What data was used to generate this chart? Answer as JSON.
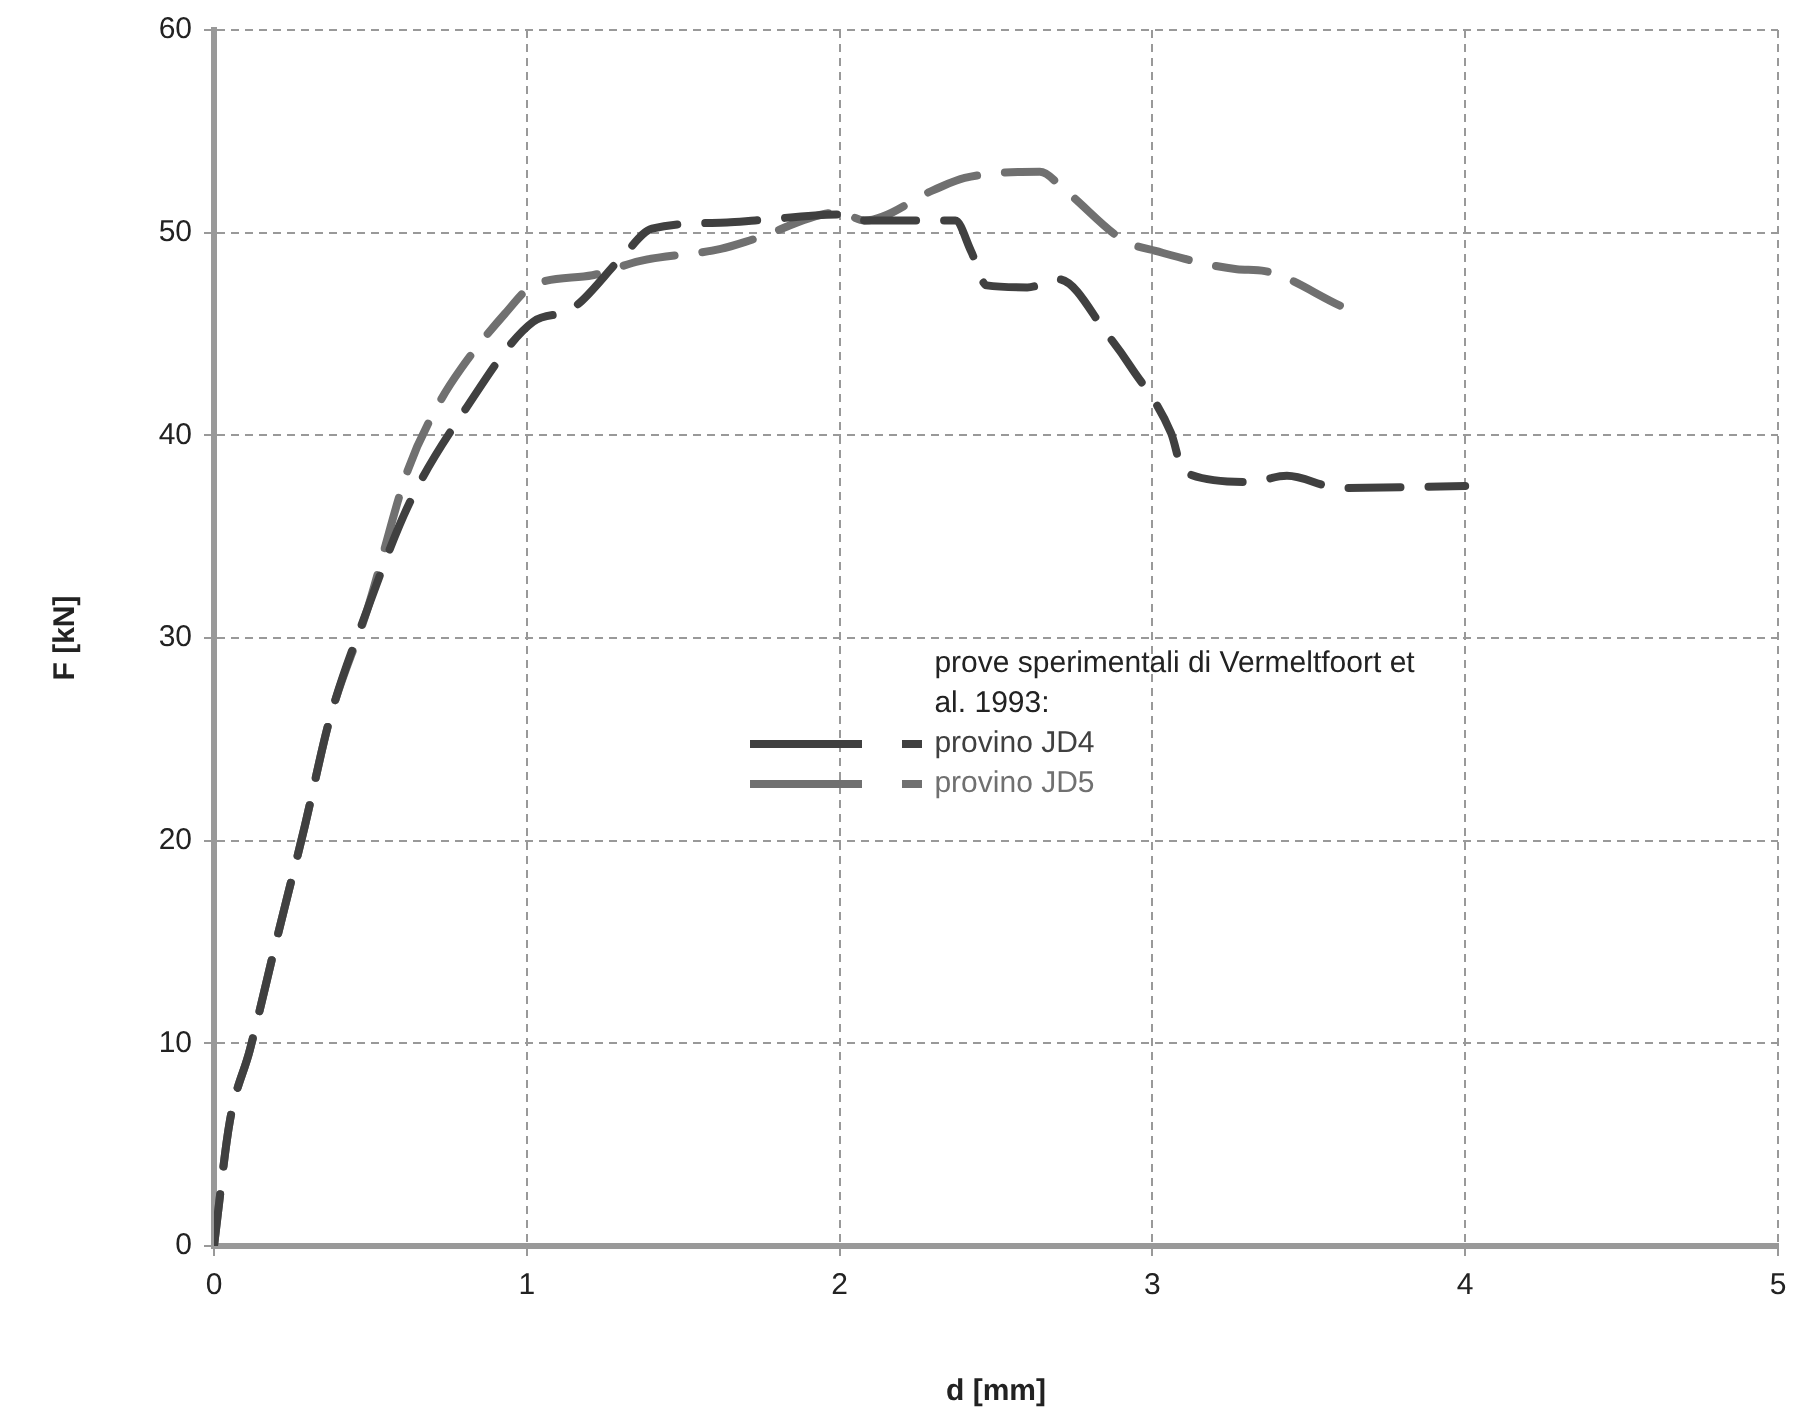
{
  "chart_data": {
    "type": "line",
    "xlabel": "d [mm]",
    "ylabel": "F [kN]",
    "legend_title": "prove sperimentali di Vermeltfoort et al. 1993:",
    "legend": "center",
    "grid": true,
    "line_style": "dashed",
    "marker": "none",
    "xlim": [
      0,
      5
    ],
    "xticks": [
      0,
      1,
      2,
      3,
      4,
      5
    ],
    "ylim": [
      0,
      60
    ],
    "yticks": [
      0,
      10,
      20,
      30,
      40,
      50,
      60
    ],
    "series": [
      {
        "name": "provino JD4",
        "color": "#404040",
        "x": [
          0,
          0.05,
          0.115,
          0.2,
          0.29,
          0.37,
          0.49,
          0.62,
          0.8,
          1.02,
          1.14,
          1.31,
          1.4,
          1.64,
          1.73,
          2.0,
          2.08,
          2.37,
          2.42,
          2.47,
          2.6,
          2.7,
          2.86,
          2.93,
          3.06,
          3.1,
          3.31,
          3.43,
          3.6,
          4.0
        ],
        "values": [
          0,
          6.1,
          9.7,
          15.1,
          20.7,
          26,
          31.4,
          36.5,
          41.2,
          45.6,
          46.2,
          48.9,
          50.2,
          50.5,
          50.6,
          50.9,
          50.6,
          50.6,
          49.1,
          47.4,
          47.3,
          47.7,
          44.9,
          43.4,
          40.1,
          38.2,
          37.7,
          38,
          37.4,
          37.5
        ]
      },
      {
        "name": "provino JD5",
        "color": "#707070",
        "x": [
          0,
          0.05,
          0.115,
          0.2,
          0.29,
          0.37,
          0.49,
          0.62,
          0.72,
          0.79,
          0.93,
          1.02,
          1.21,
          1.36,
          1.62,
          1.73,
          2.0,
          2.08,
          2.3,
          2.4,
          2.64,
          2.72,
          2.91,
          3.01,
          3.27,
          3.36,
          3.6
        ],
        "values": [
          0,
          6.1,
          9.7,
          15.1,
          20.7,
          26,
          31.4,
          38.3,
          41.6,
          43.3,
          46,
          47.4,
          47.9,
          48.6,
          49.2,
          49.7,
          51,
          50.6,
          52.1,
          52.7,
          53,
          52.1,
          49.6,
          49.1,
          48.2,
          48.1,
          46.4
        ]
      }
    ]
  }
}
